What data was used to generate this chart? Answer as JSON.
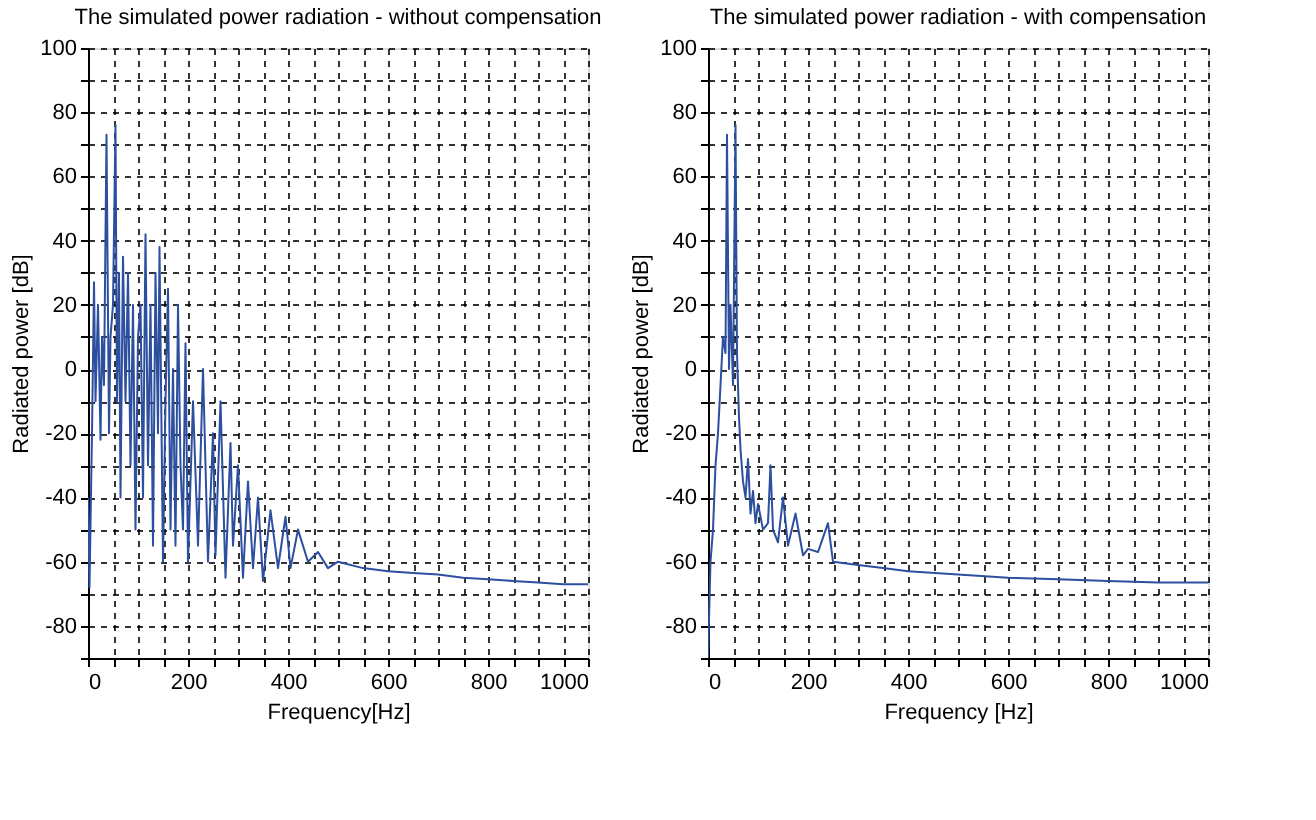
{
  "chart_data": [
    {
      "type": "line",
      "title": "The simulated power radiation - without compensation",
      "xlabel": "Frequency[Hz]",
      "ylabel": "Radiated power [dB]",
      "xlim": [
        0,
        1000
      ],
      "ylim": [
        -90,
        100
      ],
      "xticks": [
        0,
        {
          "value": 50,
          "label": null
        },
        {
          "value": 100,
          "label": null
        },
        {
          "value": 150,
          "label": null
        },
        200,
        {
          "value": 250,
          "label": null
        },
        {
          "value": 300,
          "label": null
        },
        {
          "value": 350,
          "label": null
        },
        400,
        {
          "value": 450,
          "label": null
        },
        {
          "value": 500,
          "label": null
        },
        {
          "value": 550,
          "label": null
        },
        600,
        {
          "value": 650,
          "label": null
        },
        {
          "value": 700,
          "label": null
        },
        {
          "value": 750,
          "label": null
        },
        800,
        {
          "value": 850,
          "label": null
        },
        {
          "value": 900,
          "label": null
        },
        {
          "value": 950,
          "label": null
        },
        1000
      ],
      "yticks": [
        {
          "value": -90,
          "label": null
        },
        -80,
        {
          "value": -70,
          "label": null
        },
        -60,
        {
          "value": -50,
          "label": null
        },
        -40,
        {
          "value": -30,
          "label": null
        },
        -20,
        {
          "value": -10,
          "label": null
        },
        0,
        {
          "value": 10,
          "label": null
        },
        20,
        {
          "value": 30,
          "label": null
        },
        40,
        {
          "value": 50,
          "label": null
        },
        60,
        {
          "value": 70,
          "label": null
        },
        80,
        {
          "value": 90,
          "label": null
        },
        100
      ],
      "grid": true,
      "line_style": "solid",
      "series": [
        {
          "color": "#2d4fa0",
          "x": [
            0,
            3,
            8,
            12,
            15,
            20,
            25,
            28,
            32,
            37,
            42,
            45,
            50,
            55,
            58,
            62,
            65,
            70,
            75,
            80,
            85,
            90,
            95,
            100,
            105,
            110,
            115,
            120,
            125,
            130,
            135,
            140,
            143,
            150,
            155,
            160,
            165,
            170,
            175,
            180,
            185,
            190,
            195,
            200,
            210,
            220,
            230,
            240,
            250,
            255,
            265,
            275,
            285,
            290,
            300,
            310,
            320,
            330,
            340,
            350,
            365,
            380,
            395,
            405,
            420,
            440,
            460,
            480,
            500,
            550,
            600,
            650,
            700,
            750,
            800,
            850,
            900,
            950,
            1000
          ],
          "values": [
            -40,
            -68,
            -20,
            27,
            -10,
            20,
            -22,
            10,
            -5,
            73,
            -20,
            10,
            20,
            76,
            -10,
            30,
            -40,
            35,
            -10,
            30,
            -30,
            20,
            -50,
            10,
            20,
            -40,
            42,
            -30,
            20,
            -55,
            30,
            -20,
            38,
            -60,
            -10,
            25,
            -50,
            0,
            -55,
            20,
            -30,
            -50,
            8,
            -60,
            -10,
            -55,
            0,
            -60,
            -20,
            -58,
            -10,
            -65,
            -23,
            -55,
            -30,
            -65,
            -35,
            -62,
            -40,
            -66,
            -44,
            -62,
            -46,
            -62,
            -50,
            -60,
            -57,
            -62,
            -60,
            -62,
            -63,
            -63.5,
            -64,
            -65,
            -65.5,
            -66,
            -66.5,
            -67,
            -67
          ]
        }
      ]
    },
    {
      "type": "line",
      "title": "The simulated power radiation - with compensation",
      "xlabel": "Frequency [Hz]",
      "ylabel": "Radiated power [dB]",
      "xlim": [
        0,
        1000
      ],
      "ylim": [
        -90,
        100
      ],
      "xticks": [
        0,
        {
          "value": 50,
          "label": null
        },
        {
          "value": 100,
          "label": null
        },
        {
          "value": 150,
          "label": null
        },
        200,
        {
          "value": 250,
          "label": null
        },
        {
          "value": 300,
          "label": null
        },
        {
          "value": 350,
          "label": null
        },
        400,
        {
          "value": 450,
          "label": null
        },
        {
          "value": 500,
          "label": null
        },
        {
          "value": 550,
          "label": null
        },
        600,
        {
          "value": 650,
          "label": null
        },
        {
          "value": 700,
          "label": null
        },
        {
          "value": 750,
          "label": null
        },
        800,
        {
          "value": 850,
          "label": null
        },
        {
          "value": 900,
          "label": null
        },
        {
          "value": 950,
          "label": null
        },
        1000
      ],
      "yticks": [
        {
          "value": -90,
          "label": null
        },
        -80,
        {
          "value": -70,
          "label": null
        },
        -60,
        {
          "value": -50,
          "label": null
        },
        -40,
        {
          "value": -30,
          "label": null
        },
        -20,
        {
          "value": -10,
          "label": null
        },
        0,
        {
          "value": 10,
          "label": null
        },
        20,
        {
          "value": 30,
          "label": null
        },
        40,
        {
          "value": 50,
          "label": null
        },
        60,
        {
          "value": 70,
          "label": null
        },
        80,
        {
          "value": 90,
          "label": null
        },
        100
      ],
      "grid": true,
      "line_style": "solid",
      "series": [
        {
          "color": "#2d4fa0",
          "x": [
            0,
            5,
            10,
            15,
            20,
            25,
            30,
            35,
            38,
            42,
            45,
            50,
            55,
            58,
            62,
            65,
            70,
            75,
            80,
            85,
            90,
            95,
            100,
            110,
            120,
            125,
            130,
            140,
            150,
            160,
            175,
            190,
            200,
            220,
            240,
            250,
            300,
            350,
            400,
            500,
            600,
            700,
            800,
            900,
            1000
          ],
          "values": [
            -90,
            -60,
            -50,
            -30,
            -20,
            -5,
            10,
            5,
            73,
            0,
            20,
            -5,
            76,
            5,
            -15,
            -25,
            -35,
            -40,
            -28,
            -45,
            -38,
            -48,
            -42,
            -50,
            -48,
            -30,
            -50,
            -54,
            -40,
            -55,
            -45,
            -58,
            -56,
            -57,
            -48,
            -60,
            -61,
            -62,
            -63,
            -64,
            -65,
            -65.5,
            -66,
            -66.5,
            -66.5
          ]
        }
      ]
    }
  ]
}
